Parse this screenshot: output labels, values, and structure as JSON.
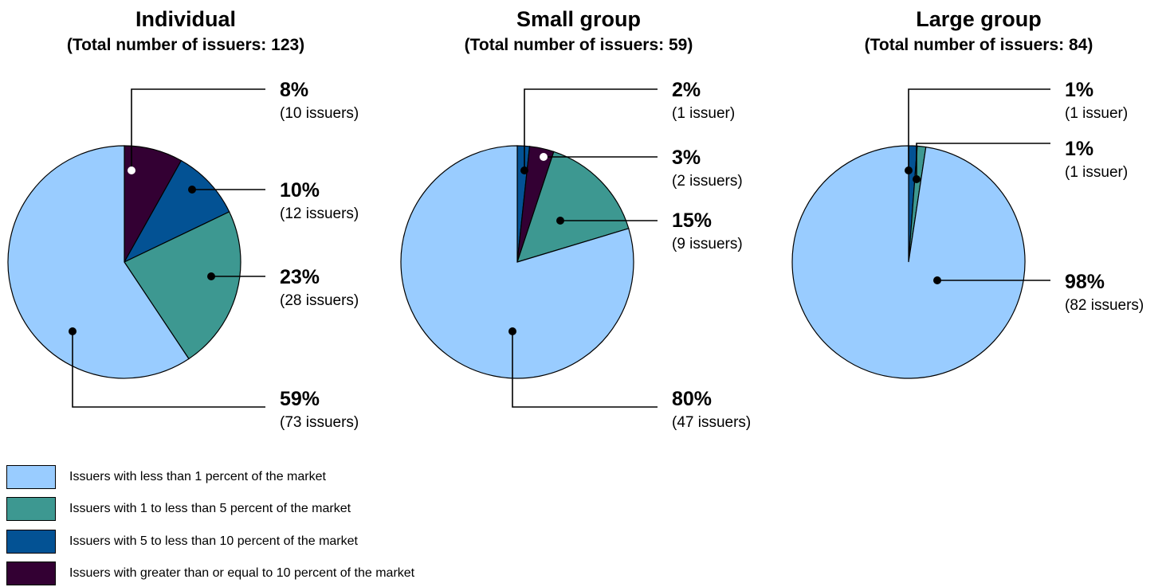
{
  "colors": {
    "lt1": "#99ccff",
    "p1to5": "#3d9891",
    "p5to10": "#035294",
    "ge10": "#330033"
  },
  "legend": [
    {
      "label": "Issuers with less than 1 percent of the market",
      "color": "#99ccff"
    },
    {
      "label": "Issuers with 1 to less than 5 percent of the market",
      "color": "#3d9891"
    },
    {
      "label": "Issuers with 5 to less than 10 percent of the market",
      "color": "#035294"
    },
    {
      "label": "Issuers with greater than or equal to 10 percent of the market",
      "color": "#330033"
    }
  ],
  "chart_data": [
    {
      "type": "pie",
      "title": "Individual",
      "subtitle": "(Total number of issuers: 123)",
      "slices": [
        {
          "key": "ge10",
          "pct_label": "8%",
          "count_label": "(10 issuers)",
          "value": 10
        },
        {
          "key": "p5to10",
          "pct_label": "10%",
          "count_label": "(12 issuers)",
          "value": 12
        },
        {
          "key": "p1to5",
          "pct_label": "23%",
          "count_label": "(28 issuers)",
          "value": 28
        },
        {
          "key": "lt1",
          "pct_label": "59%",
          "count_label": "(73 issuers)",
          "value": 73
        }
      ]
    },
    {
      "type": "pie",
      "title": "Small group",
      "subtitle": "(Total number of issuers: 59)",
      "slices": [
        {
          "key": "p5to10",
          "pct_label": "2%",
          "count_label": "(1 issuer)",
          "value": 1
        },
        {
          "key": "ge10",
          "pct_label": "3%",
          "count_label": "(2 issuers)",
          "value": 2
        },
        {
          "key": "p1to5",
          "pct_label": "15%",
          "count_label": "(9 issuers)",
          "value": 9
        },
        {
          "key": "lt1",
          "pct_label": "80%",
          "count_label": "(47 issuers)",
          "value": 47
        }
      ]
    },
    {
      "type": "pie",
      "title": "Large group",
      "subtitle": "(Total number of issuers: 84)",
      "slices": [
        {
          "key": "p5to10",
          "pct_label": "1%",
          "count_label": "(1 issuer)",
          "value": 1
        },
        {
          "key": "p1to5",
          "pct_label": "1%",
          "count_label": "(1 issuer)",
          "value": 1
        },
        {
          "key": "lt1",
          "pct_label": "98%",
          "count_label": "(82 issuers)",
          "value": 82
        }
      ]
    }
  ]
}
